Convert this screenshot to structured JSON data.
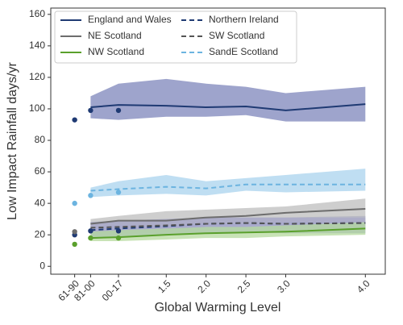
{
  "chart_data": {
    "type": "line",
    "y_label": "Low Impact Rainfall days/yr",
    "x_label": "Global Warming Level",
    "x": [
      0.55,
      0.9,
      1.5,
      2.0,
      2.5,
      3.0,
      4.0
    ],
    "point_x": [
      0.35,
      0.55,
      0.9
    ],
    "xlim": [
      0.05,
      4.25
    ],
    "xticks": [
      {
        "value": 0.35,
        "label": "61-90"
      },
      {
        "value": 0.55,
        "label": "81-00"
      },
      {
        "value": 0.9,
        "label": "00-17"
      },
      {
        "value": 1.5,
        "label": "1.5"
      },
      {
        "value": 2.0,
        "label": "2.0"
      },
      {
        "value": 2.5,
        "label": "2.5"
      },
      {
        "value": 3.0,
        "label": "3.0"
      },
      {
        "value": 4.0,
        "label": "4.0"
      }
    ],
    "ylim": [
      -5,
      164
    ],
    "yticks": [
      0,
      20,
      40,
      60,
      80,
      100,
      120,
      140,
      160
    ],
    "grid": false,
    "legend": "upper left",
    "series": [
      {
        "name": "England and Wales",
        "color": "#1f3a73",
        "band_color": "#7d86bb",
        "dashed": false,
        "values": [
          101,
          102.5,
          102,
          101,
          101.5,
          99,
          103
        ],
        "low": [
          94,
          93,
          95,
          95,
          96,
          92,
          92
        ],
        "high": [
          108,
          116,
          119,
          116,
          114,
          110,
          114
        ],
        "points": [
          93,
          99,
          99
        ]
      },
      {
        "name": "Northern Ireland",
        "color": "#1f3a73",
        "band_color": "#8a92c8",
        "dashed": true,
        "values": [
          23,
          24,
          25.5,
          27,
          27.5,
          27,
          27.5
        ],
        "low": [
          18,
          19,
          20,
          21,
          22,
          21,
          21
        ],
        "high": [
          28,
          29,
          30,
          31,
          31,
          31,
          32
        ],
        "points": [
          20,
          22.5,
          22.5
        ]
      },
      {
        "name": "NE Scotland",
        "color": "#6d6d6d",
        "band_color": "#bdbdbd",
        "dashed": false,
        "values": [
          27,
          29,
          29,
          31,
          32,
          34,
          36.5
        ],
        "low": [
          25,
          26,
          26,
          27,
          27,
          28,
          28
        ],
        "high": [
          30,
          32,
          35,
          36,
          37,
          38,
          43
        ],
        "points": [
          22,
          null,
          null
        ]
      },
      {
        "name": "SW Scotland",
        "color": "#555555",
        "band_color": "#a9a9c9",
        "dashed": true,
        "values": [
          24.5,
          25,
          26,
          27,
          27.5,
          27,
          27.5
        ],
        "low": [
          21,
          21,
          22,
          23,
          23,
          23,
          23
        ],
        "high": [
          28,
          29,
          30,
          31,
          31,
          31,
          31
        ],
        "points": [
          null,
          null,
          null
        ]
      },
      {
        "name": "NW Scotland",
        "color": "#5aa02c",
        "band_color": "#b6da9e",
        "dashed": false,
        "values": [
          18,
          18.5,
          20,
          21,
          21.5,
          22,
          24
        ],
        "low": [
          16,
          16,
          17,
          18,
          18,
          19,
          20
        ],
        "high": [
          22,
          23,
          24,
          25,
          25,
          26,
          28
        ],
        "points": [
          14,
          18,
          18
        ]
      },
      {
        "name": "SandE Scotland",
        "color": "#6cb4e0",
        "band_color": "#a9d3ee",
        "dashed": true,
        "values": [
          48,
          49,
          50.5,
          49.5,
          52,
          52,
          52
        ],
        "low": [
          44,
          45,
          46,
          45,
          48,
          47,
          48
        ],
        "high": [
          50,
          54,
          58,
          54,
          56,
          58,
          62
        ],
        "points": [
          40,
          45,
          47
        ]
      }
    ]
  }
}
